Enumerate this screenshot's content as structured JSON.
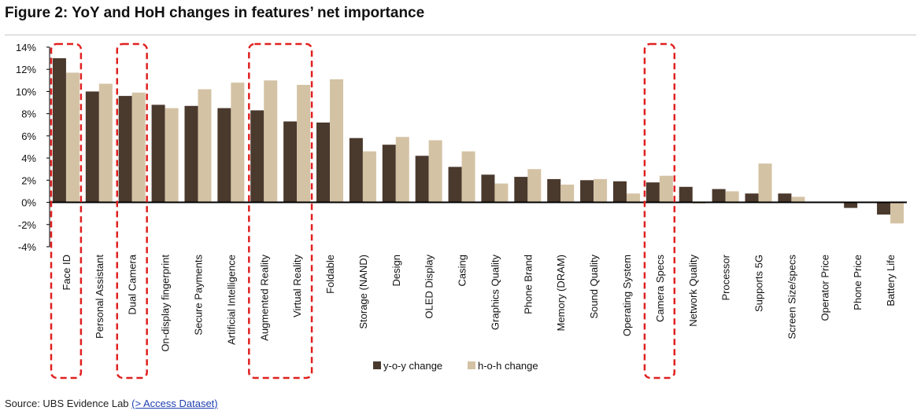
{
  "figure": {
    "title": "Figure 2: YoY and HoH changes in features’ net importance",
    "source_prefix": "Source:  UBS Evidence Lab ",
    "source_link": "(> Access Dataset)"
  },
  "colors": {
    "yoy": "#4a392d",
    "hoh": "#d4c2a4",
    "highlight": "#e02020",
    "axis": "#000000"
  },
  "chart_data": {
    "type": "bar",
    "title": "YoY and HoH changes in features’ net importance",
    "xlabel": "",
    "ylabel": "",
    "ylim": [
      -4,
      14
    ],
    "yticks": [
      14,
      12,
      10,
      8,
      6,
      4,
      2,
      0,
      -2,
      -4
    ],
    "ytick_labels": [
      "14%",
      "12%",
      "10%",
      "8%",
      "6%",
      "4%",
      "2%",
      "0%",
      "-2%",
      "-4%"
    ],
    "categories": [
      "Face ID",
      "Personal Assistant",
      "Dual Camera",
      "On-display fingerprint",
      "Secure Payments",
      "Artificial Intelligence",
      "Augmented Reality",
      "Virtual Reality",
      "Foldable",
      "Storage (NAND)",
      "Design",
      "OLED Display",
      "Casing",
      "Graphics Quality",
      "Phone Brand",
      "Memory (DRAM)",
      "Sound Quality",
      "Operating System",
      "Camera Specs",
      "Network Quality",
      "Processor",
      "Supports 5G",
      "Screen Size/specs",
      "Operator Price",
      "Phone Price",
      "Battery Life"
    ],
    "series": [
      {
        "name": "y-o-y change",
        "values": [
          13.0,
          10.0,
          9.6,
          8.8,
          8.7,
          8.5,
          8.3,
          7.3,
          7.2,
          5.8,
          5.2,
          4.2,
          3.2,
          2.5,
          2.3,
          2.1,
          2.0,
          1.9,
          1.8,
          1.4,
          1.2,
          0.8,
          0.8,
          0.0,
          -0.5,
          -1.1
        ]
      },
      {
        "name": "h-o-h change",
        "values": [
          11.7,
          10.7,
          9.9,
          8.5,
          10.2,
          10.8,
          11.0,
          10.6,
          11.1,
          4.6,
          5.9,
          5.6,
          4.6,
          1.7,
          3.0,
          1.6,
          2.1,
          0.8,
          2.4,
          -0.1,
          1.0,
          3.5,
          0.5,
          0.0,
          0.0,
          -1.9
        ]
      }
    ],
    "highlighted_categories": [
      "Face ID",
      "Dual Camera",
      "Augmented Reality",
      "Virtual Reality",
      "Camera Specs"
    ],
    "legend": [
      "y-o-y change",
      "h-o-h change"
    ],
    "legend_position": "bottom-center",
    "grid": false
  }
}
